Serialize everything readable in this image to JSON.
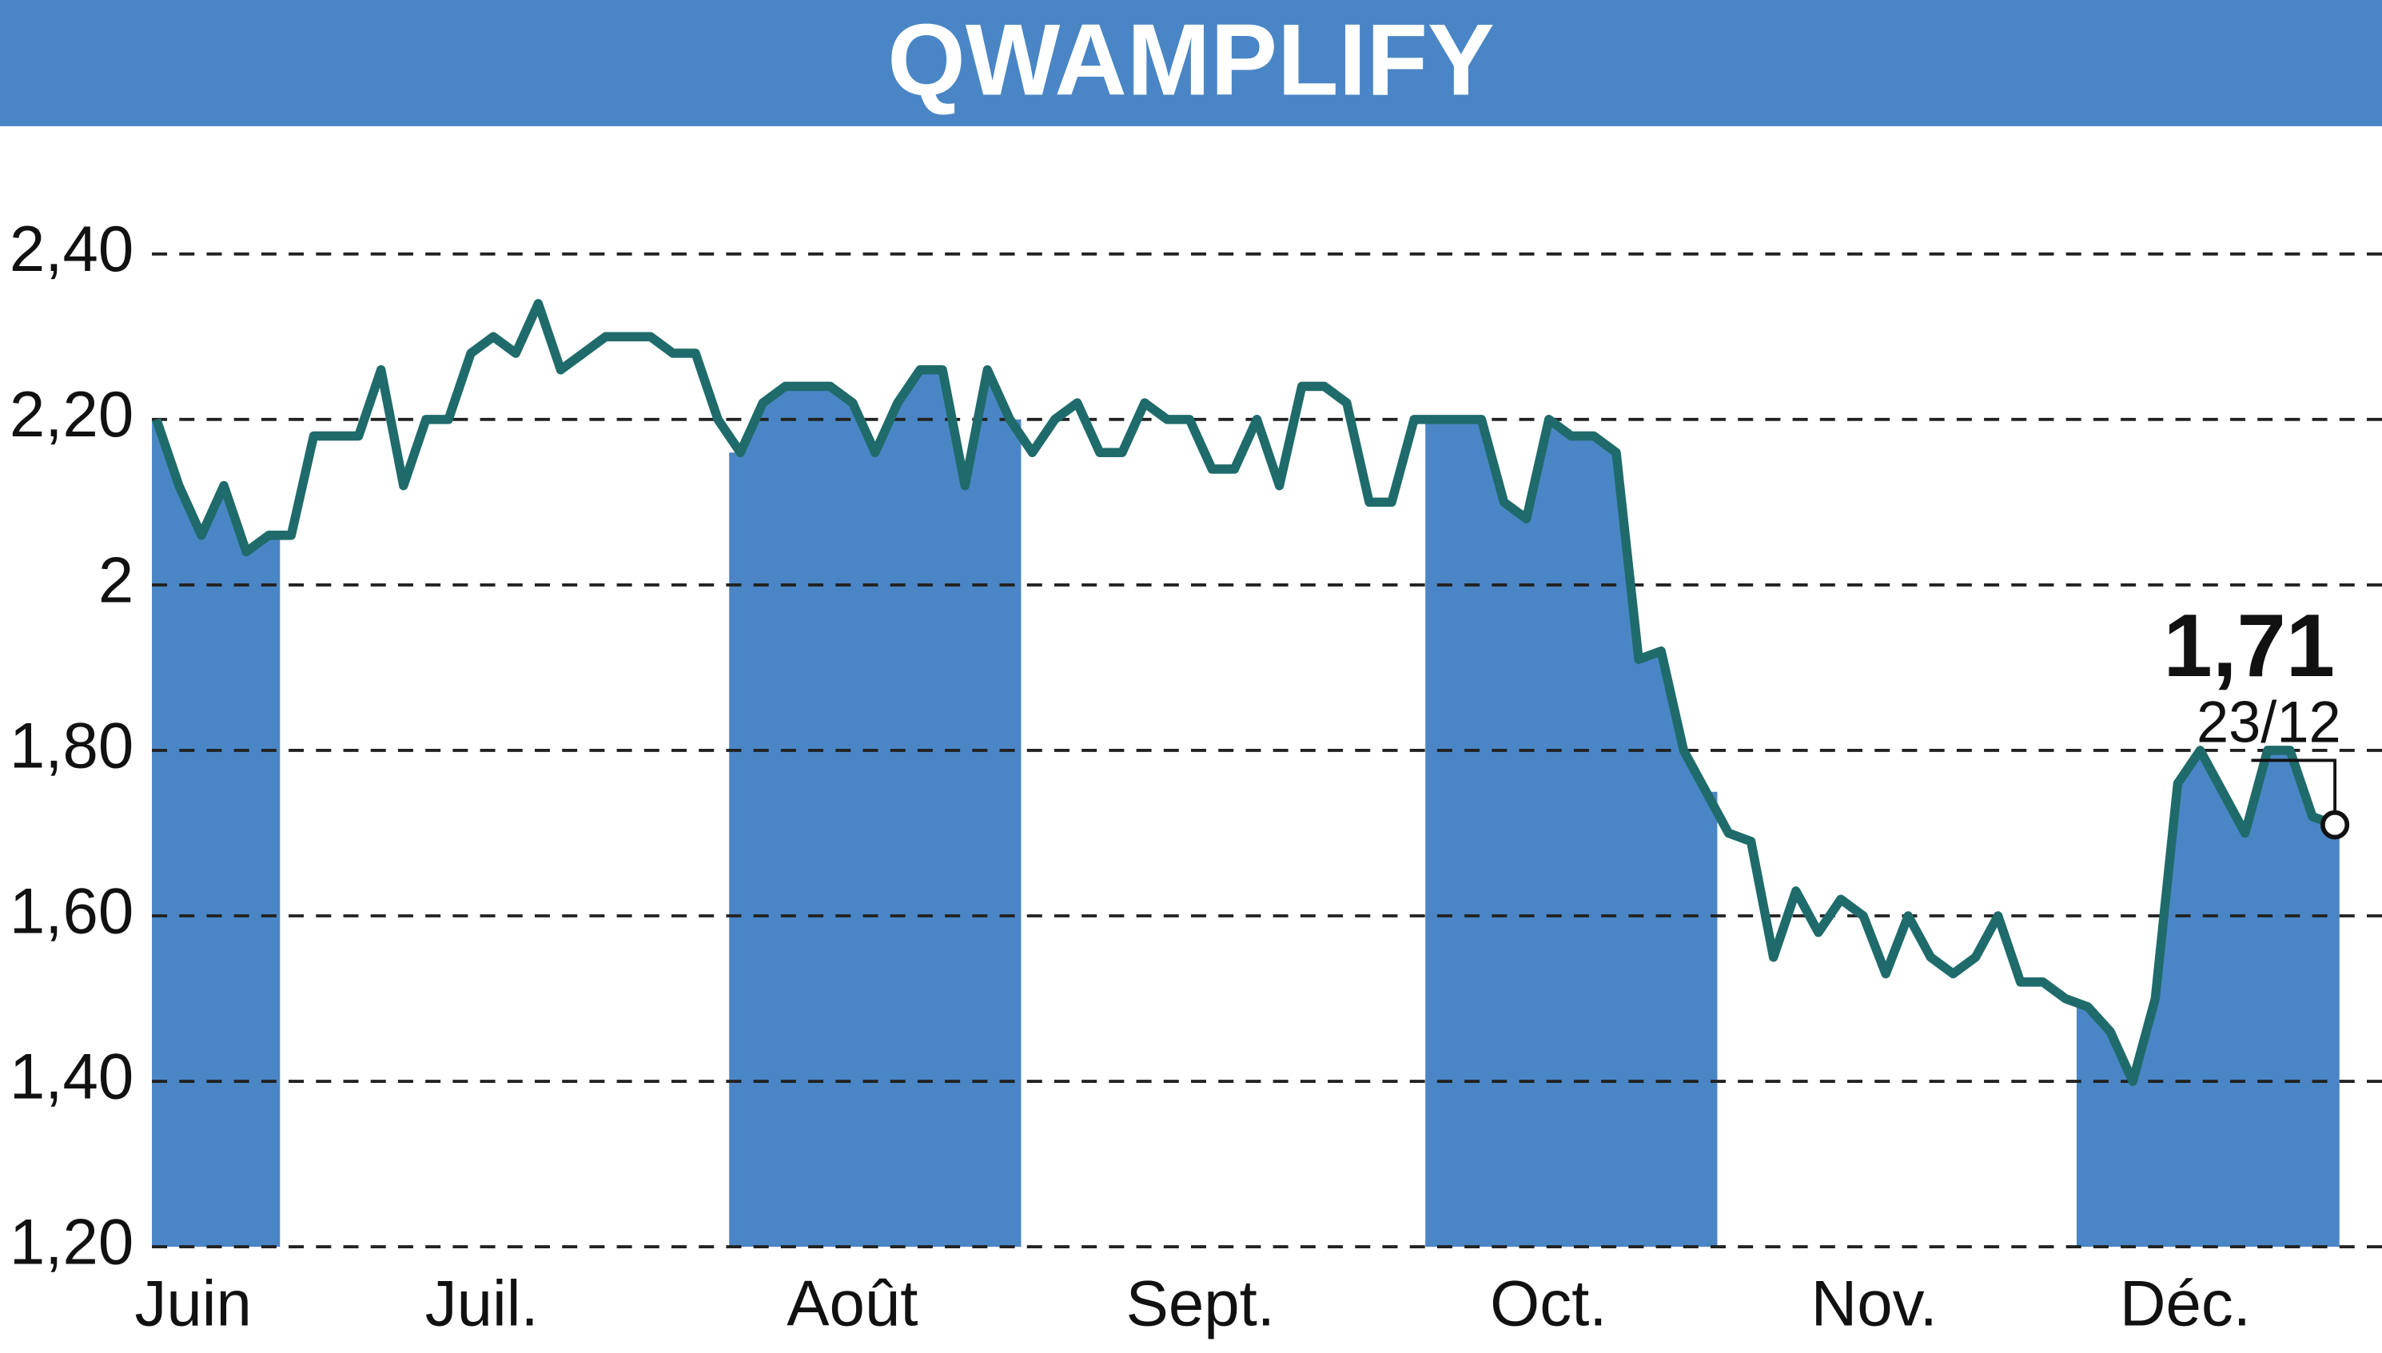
{
  "chart_data": {
    "type": "line",
    "title": "QWAMPLIFY",
    "color": "#1f6b6b",
    "band_color": "#4a86c5",
    "months": [
      {
        "label": "Juin",
        "values": [
          2.2,
          2.12,
          2.06,
          2.12,
          2.04,
          2.06
        ]
      },
      {
        "label": "Juil.",
        "values": [
          2.06,
          2.18,
          2.18,
          2.18,
          2.26,
          2.12,
          2.2,
          2.2,
          2.28,
          2.3,
          2.28,
          2.34,
          2.26,
          2.28,
          2.3,
          2.3,
          2.3,
          2.28,
          2.28,
          2.2
        ]
      },
      {
        "label": "Août",
        "values": [
          2.16,
          2.22,
          2.24,
          2.24,
          2.24,
          2.22,
          2.16,
          2.22,
          2.26,
          2.26,
          2.12,
          2.26,
          2.2
        ]
      },
      {
        "label": "Sept.",
        "values": [
          2.16,
          2.2,
          2.22,
          2.16,
          2.16,
          2.22,
          2.2,
          2.2,
          2.14,
          2.14,
          2.2,
          2.12,
          2.24,
          2.24,
          2.22,
          2.1,
          2.1,
          2.2
        ]
      },
      {
        "label": "Oct.",
        "values": [
          2.2,
          2.2,
          2.2,
          2.1,
          2.08,
          2.2,
          2.18,
          2.18,
          2.16,
          1.91,
          1.92,
          1.8,
          1.75
        ]
      },
      {
        "label": "Nov.",
        "values": [
          1.7,
          1.69,
          1.55,
          1.63,
          1.58,
          1.62,
          1.6,
          1.53,
          1.6,
          1.55,
          1.53,
          1.55,
          1.6,
          1.52,
          1.52,
          1.5
        ]
      },
      {
        "label": "Déc.",
        "values": [
          1.49,
          1.46,
          1.4,
          1.5,
          1.76,
          1.8,
          1.75,
          1.7,
          1.8,
          1.8,
          1.72,
          1.71
        ]
      }
    ],
    "last_label": "1,71",
    "last_date": "23/12",
    "ylim": [
      1.2,
      2.4
    ],
    "yticks": [
      {
        "value": 1.2,
        "label": "1,20"
      },
      {
        "value": 1.4,
        "label": "1,40"
      },
      {
        "value": 1.6,
        "label": "1,60"
      },
      {
        "value": 1.8,
        "label": "1,80"
      },
      2,
      {
        "value": 2.2,
        "label": "2,20"
      },
      {
        "value": 2.4,
        "label": "2,40"
      }
    ],
    "grid": true
  }
}
